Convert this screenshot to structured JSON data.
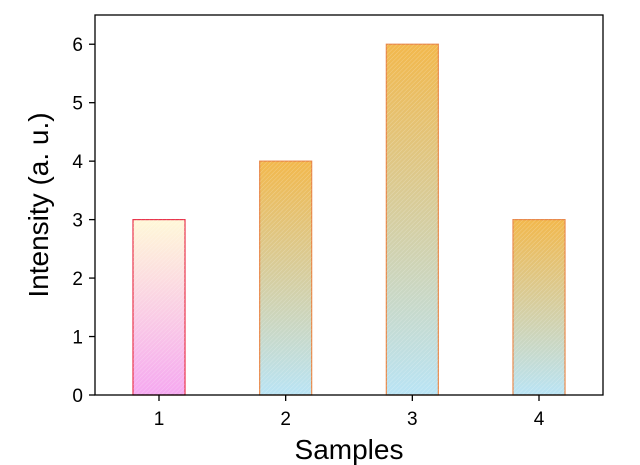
{
  "chart_data": {
    "type": "bar",
    "title": "",
    "xlabel": "Samples",
    "ylabel": "Intensity (a. u.)",
    "categories": [
      "1",
      "2",
      "3",
      "4"
    ],
    "values": [
      3,
      4,
      6,
      3
    ],
    "ylim": [
      0,
      6.5
    ],
    "yticks": [
      0,
      1,
      2,
      3,
      4,
      5,
      6
    ],
    "grid": false,
    "legend": "none",
    "bar_styles": [
      {
        "top_color": "#fff8d8",
        "bottom_color": "#f5a8f0",
        "edge_color": "#e8334a"
      },
      {
        "top_color": "#f2b84c",
        "bottom_color": "#b9e4f5",
        "edge_color": "#e8894a"
      },
      {
        "top_color": "#f2b84c",
        "bottom_color": "#b9e4f5",
        "edge_color": "#e8894a"
      },
      {
        "top_color": "#f2b84c",
        "bottom_color": "#b9e4f5",
        "edge_color": "#e8894a"
      }
    ]
  }
}
